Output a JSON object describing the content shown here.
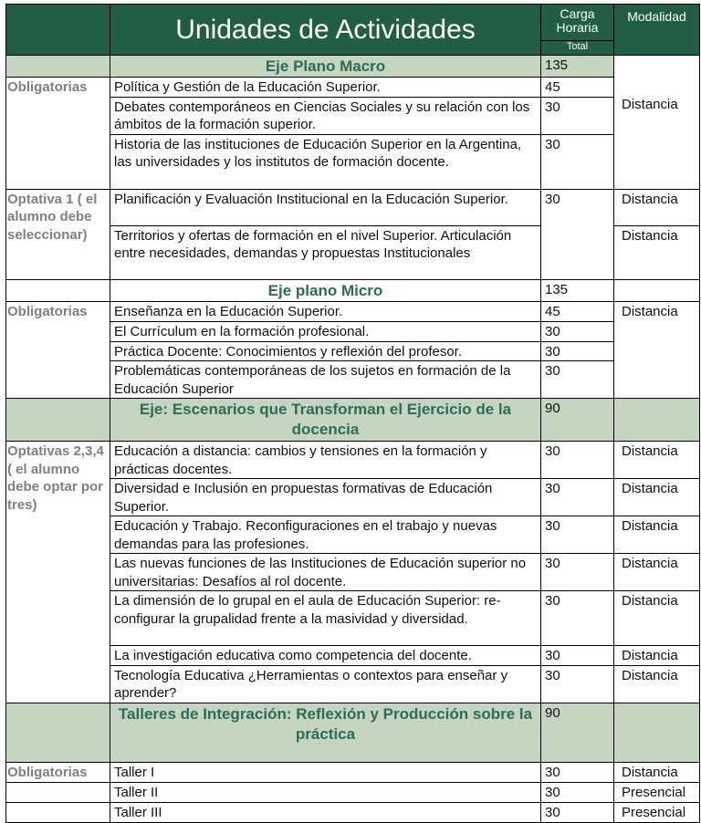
{
  "header": {
    "title": "Unidades de Actividades",
    "carga": "Carga Horaria",
    "total": "Total",
    "modalidad": "Modalidad"
  },
  "macro": {
    "title": "Eje Plano Macro",
    "hours": "135",
    "category": "Obligatorias",
    "modalidad": "Distancia",
    "rows": [
      {
        "name": "Política y Gestión de la Educación Superior.",
        "hours": "45"
      },
      {
        "name": "Debates contemporáneos en Ciencias Sociales y su relación con los ámbitos de la formación superior.",
        "hours": "30"
      },
      {
        "name": "Historia de las instituciones de Educación Superior en la Argentina, las universidades y los institutos de formación docente.",
        "hours": "30"
      }
    ]
  },
  "optativa1": {
    "category": "Optativa 1 ( el alumno debe seleccionar)",
    "hours": "30",
    "rows": [
      {
        "name": "Planificación y Evaluación Institucional en la Educación Superior.",
        "modalidad": "Distancia"
      },
      {
        "name": "Territorios y ofertas de formación en el nivel Superior. Articulación entre necesidades, demandas y propuestas Institucionales",
        "modalidad": "Distancia"
      }
    ]
  },
  "micro": {
    "title": "Eje plano Micro",
    "hours": "135",
    "category": "Obligatorias",
    "modalidad": "Distancia",
    "rows": [
      {
        "name": "Enseñanza en la Educación Superior.",
        "hours": "45"
      },
      {
        "name": "El Currículum en la formación profesional.",
        "hours": "30"
      },
      {
        "name": "Práctica Docente: Conocimientos y reflexión del profesor.",
        "hours": "30"
      },
      {
        "name": "Problemáticas contemporáneas de los sujetos en formación de la Educación Superior",
        "hours": "30"
      }
    ]
  },
  "escenarios": {
    "title": "Eje: Escenarios que Transforman el Ejercicio de la docencia",
    "hours": "90",
    "category": "Optativas 2,3,4 ( el alumno debe optar por tres)",
    "rows": [
      {
        "name": "Educación a distancia: cambios y tensiones en la formación y prácticas docentes.",
        "hours": "30",
        "modalidad": "Distancia"
      },
      {
        "name": "Diversidad e Inclusión en propuestas formativas de Educación Superior.",
        "hours": "30",
        "modalidad": "Distancia"
      },
      {
        "name": "Educación y Trabajo. Reconfiguraciones en el trabajo y nuevas demandas para las profesiones.",
        "hours": "30",
        "modalidad": "Distancia"
      },
      {
        "name": "Las nuevas funciones de las Instituciones de Educación superior no universitarias: Desafíos al rol docente.",
        "hours": "30",
        "modalidad": "Distancia"
      },
      {
        "name": "La dimensión de lo grupal en el aula de Educación Superior: re-configurar la grupalidad frente a la masividad y diversidad.",
        "hours": "30",
        "modalidad": "Distancia"
      },
      {
        "name": "La investigación educativa como competencia del docente.",
        "hours": "30",
        "modalidad": "Distancia"
      },
      {
        "name": "Tecnología Educativa ¿Herramientas o contextos para enseñar y aprender?",
        "hours": "30",
        "modalidad": "Distancia"
      }
    ]
  },
  "talleres": {
    "title": "Talleres de Integración: Reflexión y Producción sobre la práctica",
    "hours": "90",
    "category": "Obligatorias",
    "rows": [
      {
        "name": "Taller I",
        "hours": "30",
        "modalidad": "Distancia"
      },
      {
        "name": "Taller II",
        "hours": "30",
        "modalidad": "Presencial"
      },
      {
        "name": "Taller III",
        "hours": "30",
        "modalidad": "Presencial"
      }
    ]
  }
}
